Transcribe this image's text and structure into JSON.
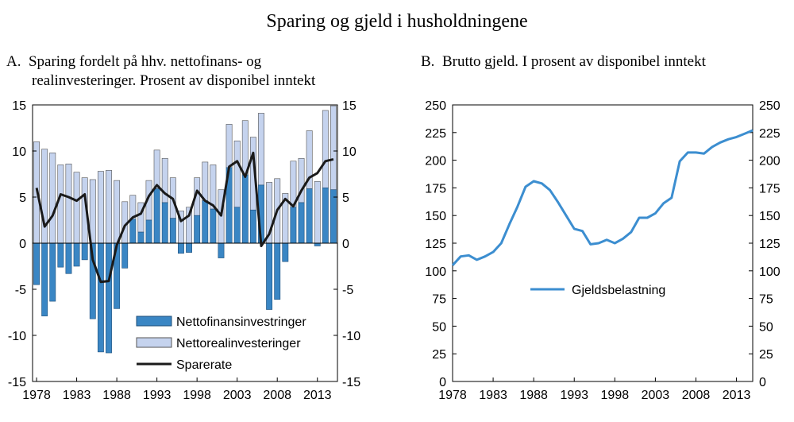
{
  "title": "Sparing og gjeld i husholdningene",
  "panel_a": {
    "title_letter": "A.",
    "title_line1": "Sparing fordelt på hhv. nettofinans- og",
    "title_line2": "realinvesteringer. Prosent av disponibel inntekt"
  },
  "panel_b": {
    "title_letter": "B.",
    "title_line1": "Brutto gjeld. I prosent av disponibel inntekt"
  },
  "colors": {
    "finans": "#3a86c4",
    "real": "#c5d3ee",
    "sparerate": "#1a1a1a",
    "gjeld": "#3c8ed0"
  },
  "chart_data": [
    {
      "type": "bar",
      "subtype": "stacked bar + line",
      "x": [
        1978,
        1979,
        1980,
        1981,
        1982,
        1983,
        1984,
        1985,
        1986,
        1987,
        1988,
        1989,
        1990,
        1991,
        1992,
        1993,
        1994,
        1995,
        1996,
        1997,
        1998,
        1999,
        2000,
        2001,
        2002,
        2003,
        2004,
        2005,
        2006,
        2007,
        2008,
        2009,
        2010,
        2011,
        2012,
        2013,
        2014,
        2015
      ],
      "series": [
        {
          "name": "Nettofinansinvestringer",
          "kind": "bar",
          "values": [
            -4.5,
            -7.9,
            -6.3,
            -2.6,
            -3.3,
            -2.5,
            -1.8,
            -8.2,
            -11.8,
            -11.9,
            -7.1,
            -2.7,
            2.6,
            1.2,
            2.5,
            5.9,
            4.4,
            2.7,
            -1.1,
            -1.0,
            3.0,
            4.6,
            3.7,
            -1.6,
            8.2,
            3.9,
            7.4,
            3.6,
            6.3,
            -7.2,
            -6.1,
            -2.0,
            3.9,
            4.4,
            5.9,
            -0.3,
            6.0,
            5.8
          ]
        },
        {
          "name": "Nettorealinvesteringer",
          "kind": "bar",
          "values": [
            11.0,
            10.2,
            9.8,
            8.5,
            8.6,
            7.7,
            7.1,
            6.9,
            7.8,
            7.9,
            6.8,
            4.5,
            2.6,
            3.2,
            4.3,
            4.2,
            4.8,
            4.4,
            3.5,
            3.9,
            4.1,
            4.2,
            4.8,
            5.8,
            4.7,
            7.2,
            5.9,
            7.9,
            7.8,
            6.6,
            7.0,
            5.4,
            5.0,
            4.8,
            6.3,
            6.7,
            8.4,
            9.1
          ]
        },
        {
          "name": "Sparerate",
          "kind": "line",
          "values": [
            6.0,
            1.8,
            3.0,
            5.3,
            5.0,
            4.6,
            5.3,
            -1.8,
            -4.2,
            -4.1,
            -0.2,
            1.9,
            2.8,
            3.2,
            5.1,
            6.3,
            5.4,
            4.8,
            2.4,
            3.0,
            5.7,
            4.6,
            4.1,
            3.0,
            8.3,
            8.9,
            7.2,
            9.8,
            -0.3,
            1.0,
            3.6,
            4.8,
            4.0,
            5.7,
            7.1,
            7.6,
            8.9,
            9.1
          ]
        }
      ],
      "legend": [
        "Nettofinansinvestringer",
        "Nettorealinvesteringer",
        "Sparerate"
      ],
      "legend_position": "bottom-right",
      "ylim": [
        -15,
        15
      ],
      "yticks": [
        -15,
        -10,
        -5,
        0,
        5,
        10,
        15
      ],
      "xticks": [
        1978,
        1983,
        1988,
        1993,
        1998,
        2003,
        2008,
        2013
      ],
      "grid": false
    },
    {
      "type": "line",
      "x": [
        1978,
        1979,
        1980,
        1981,
        1982,
        1983,
        1984,
        1985,
        1986,
        1987,
        1988,
        1989,
        1990,
        1991,
        1992,
        1993,
        1994,
        1995,
        1996,
        1997,
        1998,
        1999,
        2000,
        2001,
        2002,
        2003,
        2004,
        2005,
        2006,
        2007,
        2008,
        2009,
        2010,
        2011,
        2012,
        2013,
        2014,
        2015
      ],
      "series": [
        {
          "name": "Gjeldsbelastning",
          "values": [
            105,
            113,
            114,
            110,
            113,
            117,
            125,
            142,
            158,
            176,
            181,
            179,
            173,
            162,
            150,
            138,
            136,
            124,
            125,
            128,
            125,
            129,
            135,
            148,
            148,
            152,
            161,
            166,
            199,
            207,
            207,
            206,
            212,
            216,
            219,
            221,
            224,
            227
          ]
        }
      ],
      "legend": [
        "Gjeldsbelastning"
      ],
      "legend_position": "center",
      "ylim": [
        0,
        250
      ],
      "yticks": [
        0,
        25,
        50,
        75,
        100,
        125,
        150,
        175,
        200,
        225,
        250
      ],
      "xticks": [
        1978,
        1983,
        1988,
        1993,
        1998,
        2003,
        2008,
        2013
      ],
      "grid": false
    }
  ]
}
